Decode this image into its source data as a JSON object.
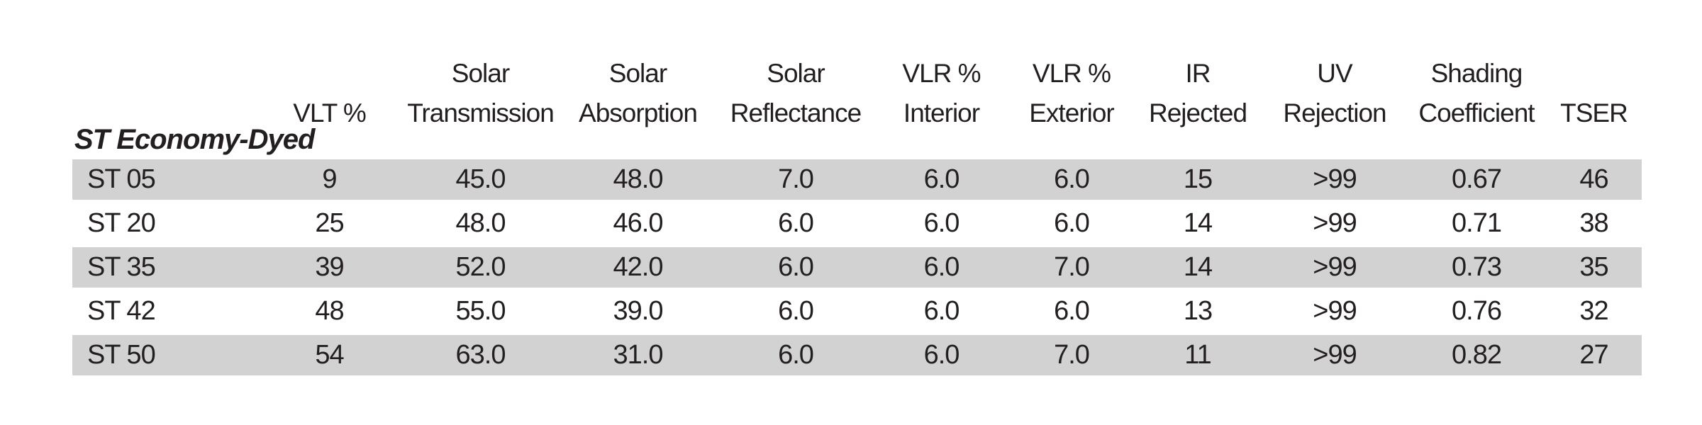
{
  "table": {
    "group_label": "ST Economy-Dyed",
    "headers": [
      "VLT %",
      "Solar\nTransmission",
      "Solar\nAbsorption",
      "Solar\nReflectance",
      "VLR %\nInterior",
      "VLR %\nExterior",
      "IR\nRejected",
      "UV\nRejection",
      "Shading\nCoefficient",
      "TSER"
    ],
    "rows": [
      {
        "name": "ST 05",
        "values": [
          "9",
          "45.0",
          "48.0",
          "7.0",
          "6.0",
          "6.0",
          "15",
          ">99",
          "0.67",
          "46"
        ]
      },
      {
        "name": "ST 20",
        "values": [
          "25",
          "48.0",
          "46.0",
          "6.0",
          "6.0",
          "6.0",
          "14",
          ">99",
          "0.71",
          "38"
        ]
      },
      {
        "name": "ST 35",
        "values": [
          "39",
          "52.0",
          "42.0",
          "6.0",
          "6.0",
          "7.0",
          "14",
          ">99",
          "0.73",
          "35"
        ]
      },
      {
        "name": "ST 42",
        "values": [
          "48",
          "55.0",
          "39.0",
          "6.0",
          "6.0",
          "6.0",
          "13",
          ">99",
          "0.76",
          "32"
        ]
      },
      {
        "name": "ST 50",
        "values": [
          "54",
          "63.0",
          "31.0",
          "6.0",
          "6.0",
          "7.0",
          "11",
          ">99",
          "0.82",
          "27"
        ]
      }
    ],
    "colors": {
      "stripe": "#d2d2d3",
      "row_background": "#ffffff",
      "text": "#231f20"
    }
  }
}
